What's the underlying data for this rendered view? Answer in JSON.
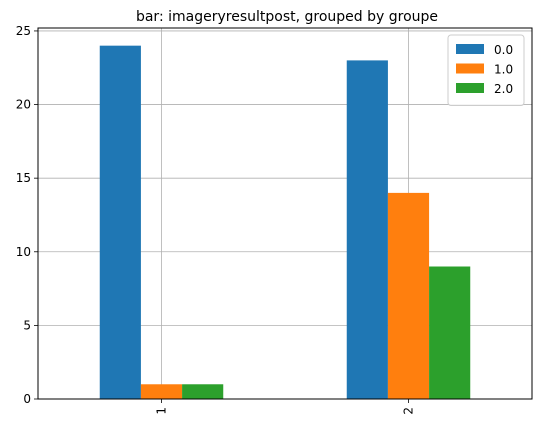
{
  "chart_data": {
    "type": "bar",
    "title": "bar: imageryresultpost, grouped by groupe",
    "xlabel": "",
    "ylabel": "",
    "categories": [
      "1",
      "2"
    ],
    "series": [
      {
        "name": "0.0",
        "values": [
          24,
          23
        ],
        "color": "#1f77b4"
      },
      {
        "name": "1.0",
        "values": [
          1,
          14
        ],
        "color": "#ff7f0e"
      },
      {
        "name": "2.0",
        "values": [
          1,
          9
        ],
        "color": "#2ca02c"
      }
    ],
    "ylim": [
      0,
      25.2
    ],
    "yticks": [
      0,
      5,
      10,
      15,
      20,
      25
    ],
    "grid": true,
    "legend_position": "top-right",
    "xtick_rotation": "vertical"
  }
}
